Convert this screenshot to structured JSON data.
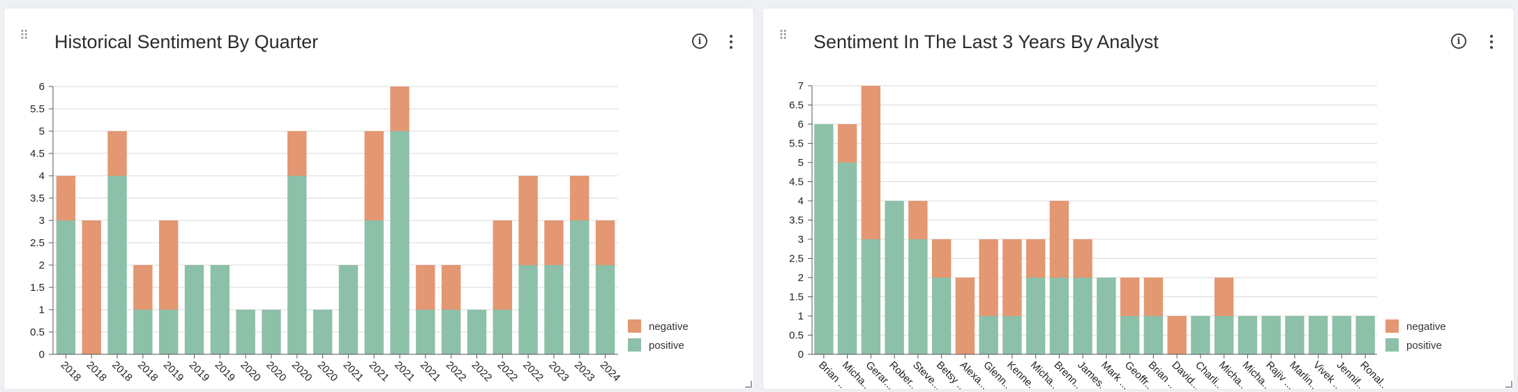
{
  "colors": {
    "positive": "#8dc0a8",
    "negative": "#e39772",
    "grid": "#d9d9d9",
    "axis": "#555555"
  },
  "icons": {
    "drag": "drag-handle-icon",
    "info": "info-icon",
    "more": "more-vertical-icon"
  },
  "panels": [
    {
      "title": "Historical Sentiment By Quarter",
      "info_glyph": "i"
    },
    {
      "title": "Sentiment In The Last 3 Years By Analyst",
      "info_glyph": "i"
    }
  ],
  "chart_data": [
    {
      "type": "bar",
      "stacked": true,
      "title": "Historical Sentiment By Quarter",
      "xlabel": "",
      "ylabel": "",
      "ylim": [
        0,
        6
      ],
      "yticks": [
        "0",
        "0.5",
        "1",
        "1.5",
        "2",
        "2.5",
        "3",
        "3.5",
        "4",
        "4.5",
        "5",
        "5.5",
        "6"
      ],
      "categories": [
        "2018",
        "2018",
        "2018",
        "2018",
        "2019",
        "2019",
        "2019",
        "2020",
        "2020",
        "2020",
        "2020",
        "2021",
        "2021",
        "2021",
        "2021",
        "2022",
        "2022",
        "2022",
        "2022",
        "2023",
        "2023",
        "2024"
      ],
      "series": [
        {
          "name": "positive",
          "values": [
            3,
            0,
            4,
            1,
            1,
            2,
            2,
            1,
            1,
            4,
            1,
            2,
            3,
            5,
            1,
            1,
            1,
            1,
            2,
            2,
            3,
            2
          ]
        },
        {
          "name": "negative",
          "values": [
            1,
            3,
            1,
            1,
            2,
            0,
            0,
            0,
            0,
            1,
            0,
            0,
            2,
            1,
            1,
            1,
            0,
            2,
            2,
            1,
            1,
            1
          ]
        }
      ],
      "legend": {
        "position": "bottom-right",
        "entries": [
          "negative",
          "positive"
        ]
      },
      "grid": true
    },
    {
      "type": "bar",
      "stacked": true,
      "title": "Sentiment In The Last 3 Years By Analyst",
      "xlabel": "",
      "ylabel": "",
      "ylim": [
        0,
        7
      ],
      "yticks": [
        "0",
        "0.5",
        "1",
        "1.5",
        "2",
        "2.5",
        "3",
        "3.5",
        "4",
        "4.5",
        "5",
        "5.5",
        "6",
        "6.5",
        "7"
      ],
      "categories": [
        "Brian ...",
        "Micha...",
        "Gerar...",
        "Rober...",
        "Steve...",
        "Betsy ...",
        "Alexa...",
        "Glenn...",
        "Kenne...",
        "Micha...",
        "Brenn...",
        "James...",
        "Mark ...",
        "Geoffr...",
        "Brian ...",
        "David...",
        "Charli...",
        "Micha...",
        "Micha...",
        "Rajiv ...",
        "Marlin...",
        "Vivek ...",
        "Jennif...",
        "Ronal..."
      ],
      "series": [
        {
          "name": "positive",
          "values": [
            6,
            5,
            3,
            4,
            3,
            2,
            0,
            1,
            1,
            2,
            2,
            2,
            2,
            1,
            1,
            0,
            1,
            1,
            1,
            1,
            1,
            1,
            1,
            1
          ]
        },
        {
          "name": "negative",
          "values": [
            0,
            1,
            4,
            0,
            1,
            1,
            2,
            2,
            2,
            1,
            2,
            1,
            0,
            1,
            1,
            1,
            0,
            1,
            0,
            0,
            0,
            0,
            0,
            0
          ]
        }
      ],
      "legend": {
        "position": "bottom-right",
        "entries": [
          "negative",
          "positive"
        ]
      },
      "grid": true
    }
  ]
}
